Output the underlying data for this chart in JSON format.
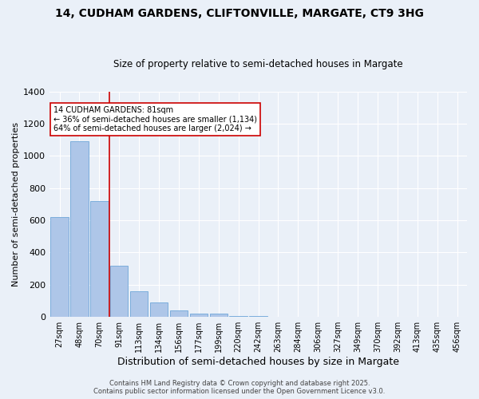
{
  "title_line1": "14, CUDHAM GARDENS, CLIFTONVILLE, MARGATE, CT9 3HG",
  "title_line2": "Size of property relative to semi-detached houses in Margate",
  "xlabel": "Distribution of semi-detached houses by size in Margate",
  "ylabel": "Number of semi-detached properties",
  "categories": [
    "27sqm",
    "48sqm",
    "70sqm",
    "91sqm",
    "113sqm",
    "134sqm",
    "156sqm",
    "177sqm",
    "199sqm",
    "220sqm",
    "242sqm",
    "263sqm",
    "284sqm",
    "306sqm",
    "327sqm",
    "349sqm",
    "370sqm",
    "392sqm",
    "413sqm",
    "435sqm",
    "456sqm"
  ],
  "values": [
    620,
    1090,
    720,
    320,
    160,
    90,
    40,
    20,
    20,
    5,
    5,
    0,
    0,
    0,
    0,
    0,
    0,
    0,
    0,
    0,
    0
  ],
  "property_bin_index": 2,
  "annotation_title": "14 CUDHAM GARDENS: 81sqm",
  "annotation_line2": "← 36% of semi-detached houses are smaller (1,134)",
  "annotation_line3": "64% of semi-detached houses are larger (2,024) →",
  "bar_color": "#aec6e8",
  "bar_edge_color": "#5b9bd5",
  "vline_color": "#cc0000",
  "annotation_box_edge": "#cc0000",
  "annotation_box_face": "#ffffff",
  "background_color": "#eaf0f8",
  "ylim": [
    0,
    1400
  ],
  "yticks": [
    0,
    200,
    400,
    600,
    800,
    1000,
    1200,
    1400
  ],
  "footer_line1": "Contains HM Land Registry data © Crown copyright and database right 2025.",
  "footer_line2": "Contains public sector information licensed under the Open Government Licence v3.0.",
  "title_fontsize": 10,
  "subtitle_fontsize": 8.5,
  "axis_label_fontsize": 8,
  "tick_fontsize": 7,
  "footer_fontsize": 6
}
